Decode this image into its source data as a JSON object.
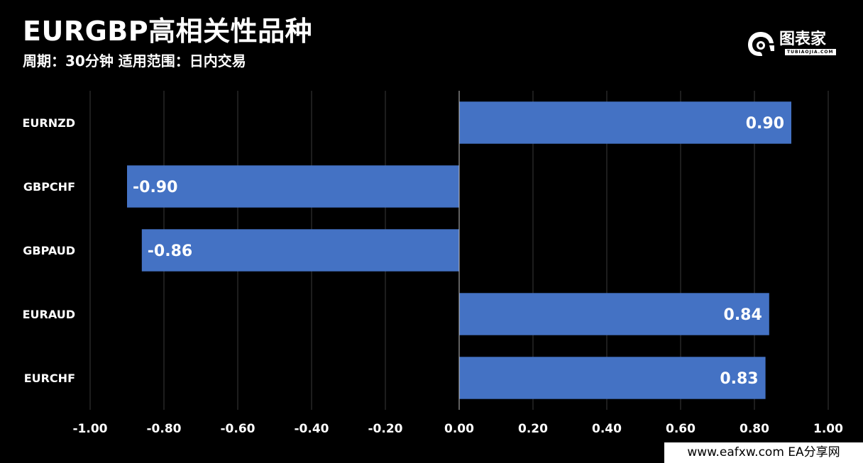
{
  "header": {
    "title": "EURGBP高相关性品种",
    "subtitle": "周期：30分钟 适用范围：日内交易"
  },
  "logo": {
    "name": "图表家",
    "sub": "TUBIAOJIA.COM",
    "icon": "robot-head-icon"
  },
  "footer": {
    "text": "www.eafxw.com EA分享网"
  },
  "colors": {
    "background": "#000000",
    "bar": "#4472c4",
    "grid": "#3a3a3a",
    "text": "#ffffff"
  },
  "chart_data": {
    "type": "bar",
    "orientation": "horizontal",
    "categories": [
      "EURNZD",
      "GBPCHF",
      "GBPAUD",
      "EURAUD",
      "EURCHF"
    ],
    "values": [
      0.9,
      -0.9,
      -0.86,
      0.84,
      0.83
    ],
    "value_labels": [
      "0.90",
      "-0.90",
      "-0.86",
      "0.84",
      "0.83"
    ],
    "xlim": [
      -1.0,
      1.0
    ],
    "xticks": [
      "-1.00",
      "-0.80",
      "-0.60",
      "-0.40",
      "-0.20",
      "0.00",
      "0.20",
      "0.40",
      "0.60",
      "0.80",
      "1.00"
    ],
    "grid": true,
    "legend": "none"
  }
}
